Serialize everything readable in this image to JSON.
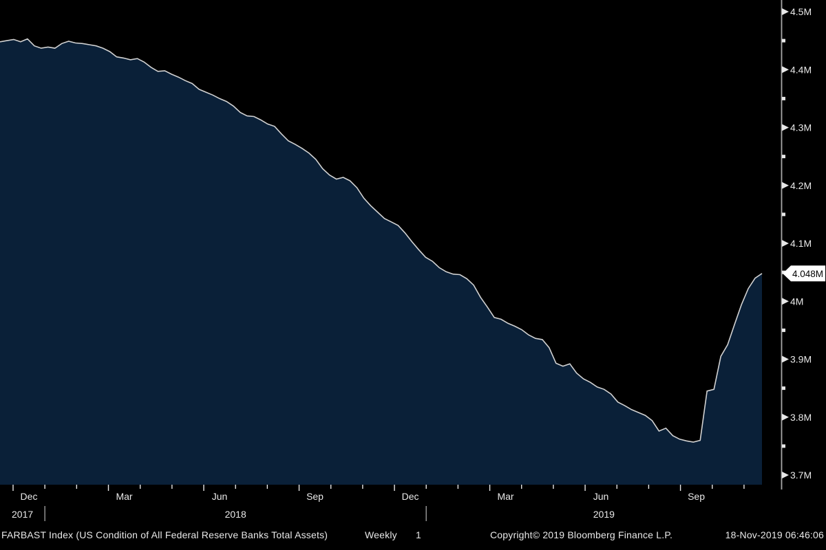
{
  "chart_data": {
    "type": "area",
    "title": "FARBAST Index (US Condition of All Federal Reserve Banks Total Assets)",
    "frequency": "Weekly",
    "x_start": "Nov 2017",
    "x_end": "13-Nov-2019",
    "values": [
      4.448,
      4.45,
      4.452,
      4.448,
      4.453,
      4.441,
      4.437,
      4.439,
      4.437,
      4.445,
      4.449,
      4.446,
      4.445,
      4.443,
      4.441,
      4.437,
      4.431,
      4.422,
      4.42,
      4.417,
      4.419,
      4.413,
      4.404,
      4.397,
      4.398,
      4.392,
      4.387,
      4.381,
      4.376,
      4.366,
      4.361,
      4.356,
      4.35,
      4.345,
      4.337,
      4.326,
      4.32,
      4.319,
      4.313,
      4.306,
      4.302,
      4.289,
      4.277,
      4.271,
      4.264,
      4.256,
      4.245,
      4.229,
      4.218,
      4.211,
      4.214,
      4.208,
      4.196,
      4.178,
      4.165,
      4.154,
      4.143,
      4.137,
      4.131,
      4.118,
      4.103,
      4.089,
      4.076,
      4.069,
      4.058,
      4.051,
      4.047,
      4.046,
      4.039,
      4.028,
      4.007,
      3.99,
      3.972,
      3.969,
      3.962,
      3.957,
      3.951,
      3.942,
      3.936,
      3.934,
      3.92,
      3.893,
      3.888,
      3.892,
      3.876,
      3.866,
      3.86,
      3.852,
      3.848,
      3.84,
      3.826,
      3.82,
      3.813,
      3.808,
      3.803,
      3.794,
      3.776,
      3.781,
      3.768,
      3.762,
      3.759,
      3.757,
      3.76,
      3.845,
      3.848,
      3.905,
      3.925,
      3.96,
      3.994,
      4.022,
      4.04,
      4.048
    ],
    "last_value": 4.048,
    "last_value_label": "4.048M",
    "y_axis": {
      "tick_labels": [
        "4.5M",
        "4.4M",
        "4.3M",
        "4.2M",
        "4.1M",
        "4M",
        "3.9M",
        "3.8M",
        "3.7M"
      ],
      "tick_values": [
        4.5,
        4.4,
        4.3,
        4.2,
        4.1,
        4.0,
        3.9,
        3.8,
        3.7
      ],
      "minor_step": 0.05,
      "ylim": [
        3.683,
        4.52
      ],
      "side": "right"
    },
    "x_axis": {
      "month_tick_labels": [
        "Dec",
        "Mar",
        "Jun",
        "Sep",
        "Dec",
        "Mar",
        "Jun",
        "Sep"
      ],
      "year_labels": [
        "2017",
        "2018",
        "2019"
      ],
      "grid": false
    },
    "colors": {
      "background": "#000000",
      "area_fill": "#0a2038",
      "line": "#d2d2d2",
      "axis": "#a8a8a8",
      "tick_mark": "#e8e8e8",
      "tick_label": "#e9e9e9",
      "callout_bg": "#ffffff",
      "callout_text": "#000000"
    },
    "legend": "none"
  },
  "footer": {
    "title": "FARBAST Index (US Condition of All Federal Reserve Banks Total Assets)",
    "frequency_label": "Weekly",
    "frequency_value": "1",
    "copyright": "Copyright© 2019 Bloomberg Finance L.P.",
    "datetime": "18-Nov-2019 06:46:06"
  }
}
